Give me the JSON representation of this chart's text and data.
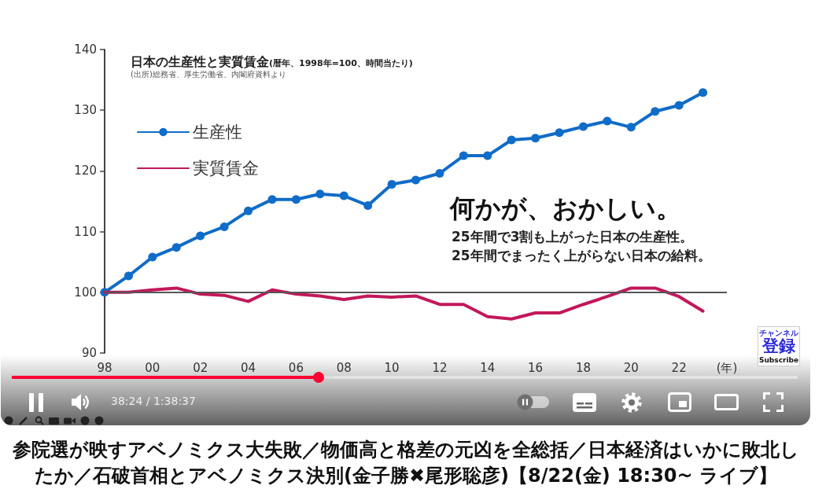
{
  "chart_data": {
    "type": "line",
    "title": "日本の生産性と実質賃金",
    "subtitle": "(暦年、1998年=100、時間当たり)",
    "xlabel": "(年)",
    "x": [
      1998,
      1999,
      2000,
      2001,
      2002,
      2003,
      2004,
      2005,
      2006,
      2007,
      2008,
      2009,
      2010,
      2011,
      2012,
      2013,
      2014,
      2015,
      2016,
      2017,
      2018,
      2019,
      2020,
      2021,
      2022,
      2023
    ],
    "series": [
      {
        "name": "生産性",
        "color": "#0f6cc8",
        "marker": "circle",
        "values": [
          100,
          102.7,
          105.8,
          107.4,
          109.3,
          110.8,
          113.4,
          115.3,
          115.3,
          116.2,
          115.9,
          114.3,
          117.8,
          118.5,
          119.6,
          122.5,
          122.5,
          125.1,
          125.4,
          126.3,
          127.3,
          128.2,
          127.2,
          129.8,
          130.8,
          132.9
        ]
      },
      {
        "name": "実質賃金",
        "color": "#c2185b",
        "marker": "none",
        "values": [
          100,
          100,
          100.4,
          100.7,
          99.7,
          99.5,
          98.5,
          100.4,
          99.7,
          99.4,
          98.8,
          99.4,
          99.2,
          99.4,
          98.0,
          98.0,
          96.0,
          95.6,
          96.6,
          96.6,
          98.0,
          99.3,
          100.7,
          100.7,
          99.3,
          96.9
        ]
      }
    ],
    "xlim": [
      1998,
      2024
    ],
    "xticks": [
      {
        "value": 1998,
        "label": "98"
      },
      {
        "value": 2000,
        "label": "00"
      },
      {
        "value": 2002,
        "label": "02"
      },
      {
        "value": 2004,
        "label": "04"
      },
      {
        "value": 2006,
        "label": "06"
      },
      {
        "value": 2008,
        "label": "08"
      },
      {
        "value": 2010,
        "label": "10"
      },
      {
        "value": 2012,
        "label": "12"
      },
      {
        "value": 2014,
        "label": "14"
      },
      {
        "value": 2016,
        "label": "16"
      },
      {
        "value": 2018,
        "label": "18"
      },
      {
        "value": 2020,
        "label": "20"
      },
      {
        "value": 2022,
        "label": "22"
      }
    ],
    "ylim": [
      90,
      140
    ],
    "yticks": [
      90,
      100,
      110,
      120,
      130,
      140
    ],
    "grid": false,
    "legend": "top left",
    "line_style": "solid",
    "ref_lines": [
      {
        "axis": "y",
        "value": 100,
        "color": "#555555"
      }
    ],
    "annotations": [
      "(出所)総務省、厚生労働省、内閣府資料より",
      "何かが、おかしい。",
      "25年間で3割も上がった日本の生産性。",
      "25年間でまったく上がらない日本の給料。",
      "チャンネル",
      "登録",
      "Subscribe",
      "38:24 / 1:38:37",
      "参院選が映すアベノミクス大失敗／物価高と格差の元凶を全総括／日本経済はいかに敗北したか／石破首相とアベノミクス決別(金子勝✖尾形聡彦)【8/22(金) 18:30~ ライブ】"
    ]
  }
}
